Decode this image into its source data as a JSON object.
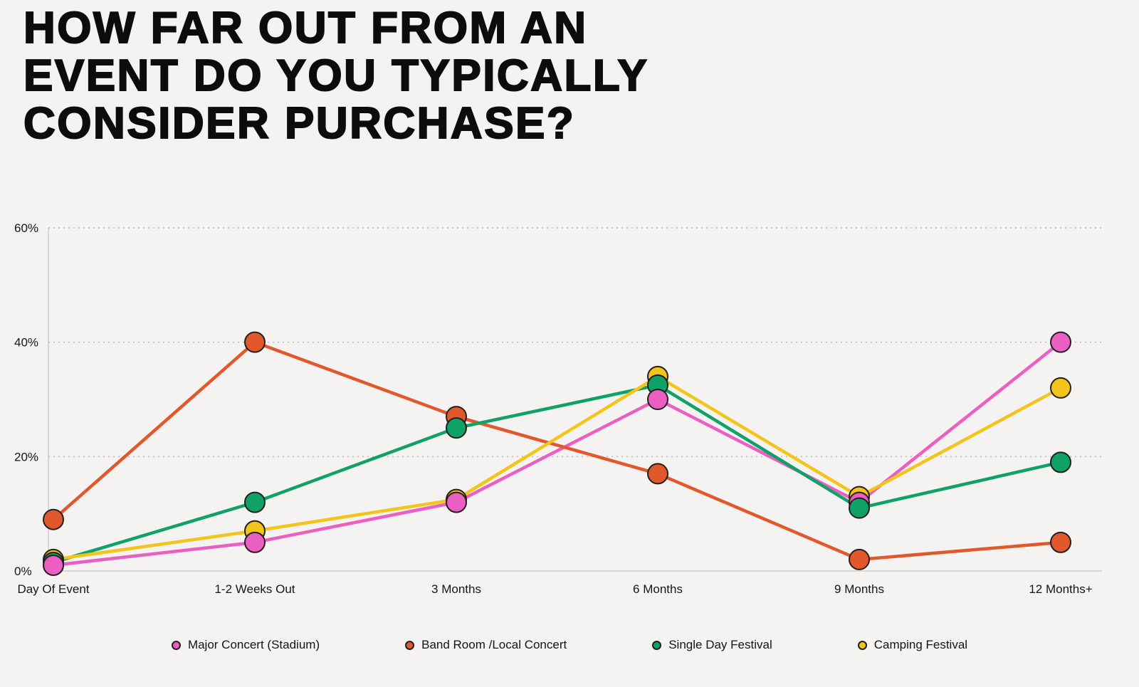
{
  "page": {
    "background": "#f4f3f1"
  },
  "title": {
    "lines": [
      "HOW FAR OUT FROM AN",
      "EVENT DO YOU TYPICALLY",
      "CONSIDER PURCHASE?"
    ]
  },
  "chart_data": {
    "type": "line",
    "title": "How Far Out From An Event Do You Typically Consider Purchase?",
    "categories": [
      "Day Of Event",
      "1-2 Weeks Out",
      "3 Months",
      "6 Months",
      "9 Months",
      "12 Months+"
    ],
    "series": [
      {
        "name": "Major Concert (Stadium)",
        "color": "#ea5fc1",
        "values": [
          1,
          5,
          12,
          30,
          12,
          40
        ]
      },
      {
        "name": "Band Room /Local Concert",
        "color": "#e2582d",
        "values": [
          9,
          40,
          27,
          17,
          2,
          5
        ]
      },
      {
        "name": "Single Day Festival",
        "color": "#10a167",
        "values": [
          1.5,
          12,
          25,
          32.5,
          11,
          19
        ]
      },
      {
        "name": "Camping Festival",
        "color": "#f3c41a",
        "values": [
          2,
          7,
          12.5,
          34,
          13,
          32
        ]
      }
    ],
    "y_ticks": [
      {
        "label": "0%",
        "value": 0
      },
      {
        "label": "20%",
        "value": 20
      },
      {
        "label": "40%",
        "value": 40
      },
      {
        "label": "60%",
        "value": 60
      }
    ],
    "ylim": [
      0,
      60
    ],
    "xlabel": "",
    "ylabel": "",
    "grid": "horizontal-dotted",
    "legend_position": "bottom",
    "marker_stroke": "#231f20",
    "axis_color": "#c8c6c3",
    "gridline_color": "#b9b7b4"
  }
}
